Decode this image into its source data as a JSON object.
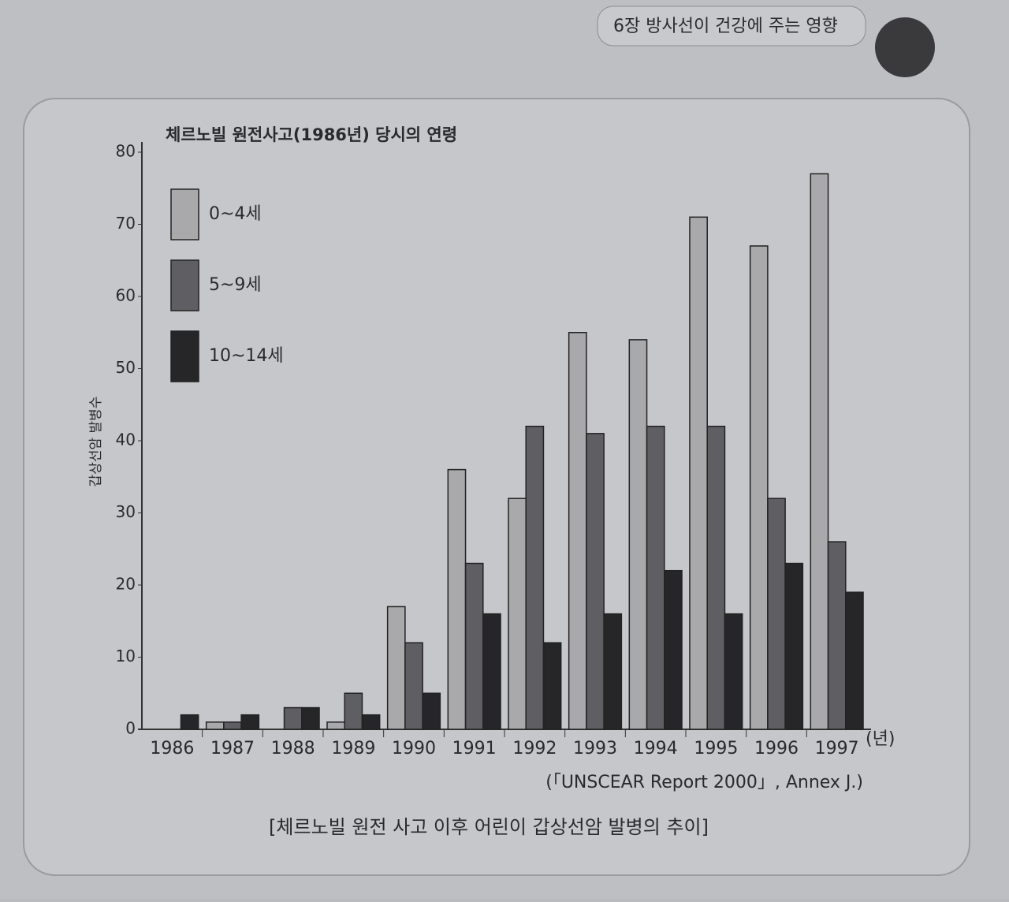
{
  "header": "6장 방사선이 건강에 주는 영향",
  "chart_data": {
    "type": "bar",
    "title": "체르노빌 원전사고(1986년) 당시의 연령",
    "ylabel": "갑상선암 발병수",
    "xlabel": "(년)",
    "categories": [
      "1986",
      "1987",
      "1988",
      "1989",
      "1990",
      "1991",
      "1992",
      "1993",
      "1994",
      "1995",
      "1996",
      "1997"
    ],
    "series": [
      {
        "name": "0~4세",
        "color": "#a9a9ab",
        "values": [
          0,
          1,
          0,
          1,
          17,
          36,
          32,
          55,
          54,
          71,
          67,
          77
        ]
      },
      {
        "name": "5~9세",
        "color": "#5f5f63",
        "values": [
          0,
          1,
          3,
          5,
          12,
          23,
          42,
          41,
          42,
          42,
          32,
          26
        ]
      },
      {
        "name": "10~14세",
        "color": "#262628",
        "values": [
          2,
          2,
          3,
          2,
          5,
          16,
          12,
          16,
          22,
          16,
          23,
          19
        ]
      }
    ],
    "ylim": [
      0,
      80
    ],
    "yticks": [
      0,
      10,
      20,
      30,
      40,
      50,
      60,
      70,
      80
    ],
    "legend": "upper left",
    "source": "(「UNSCEAR Report 2000」, Annex J.)",
    "caption": "[체르노빌 원전 사고 이후 어린이 갑상선암 발병의 추이]"
  }
}
